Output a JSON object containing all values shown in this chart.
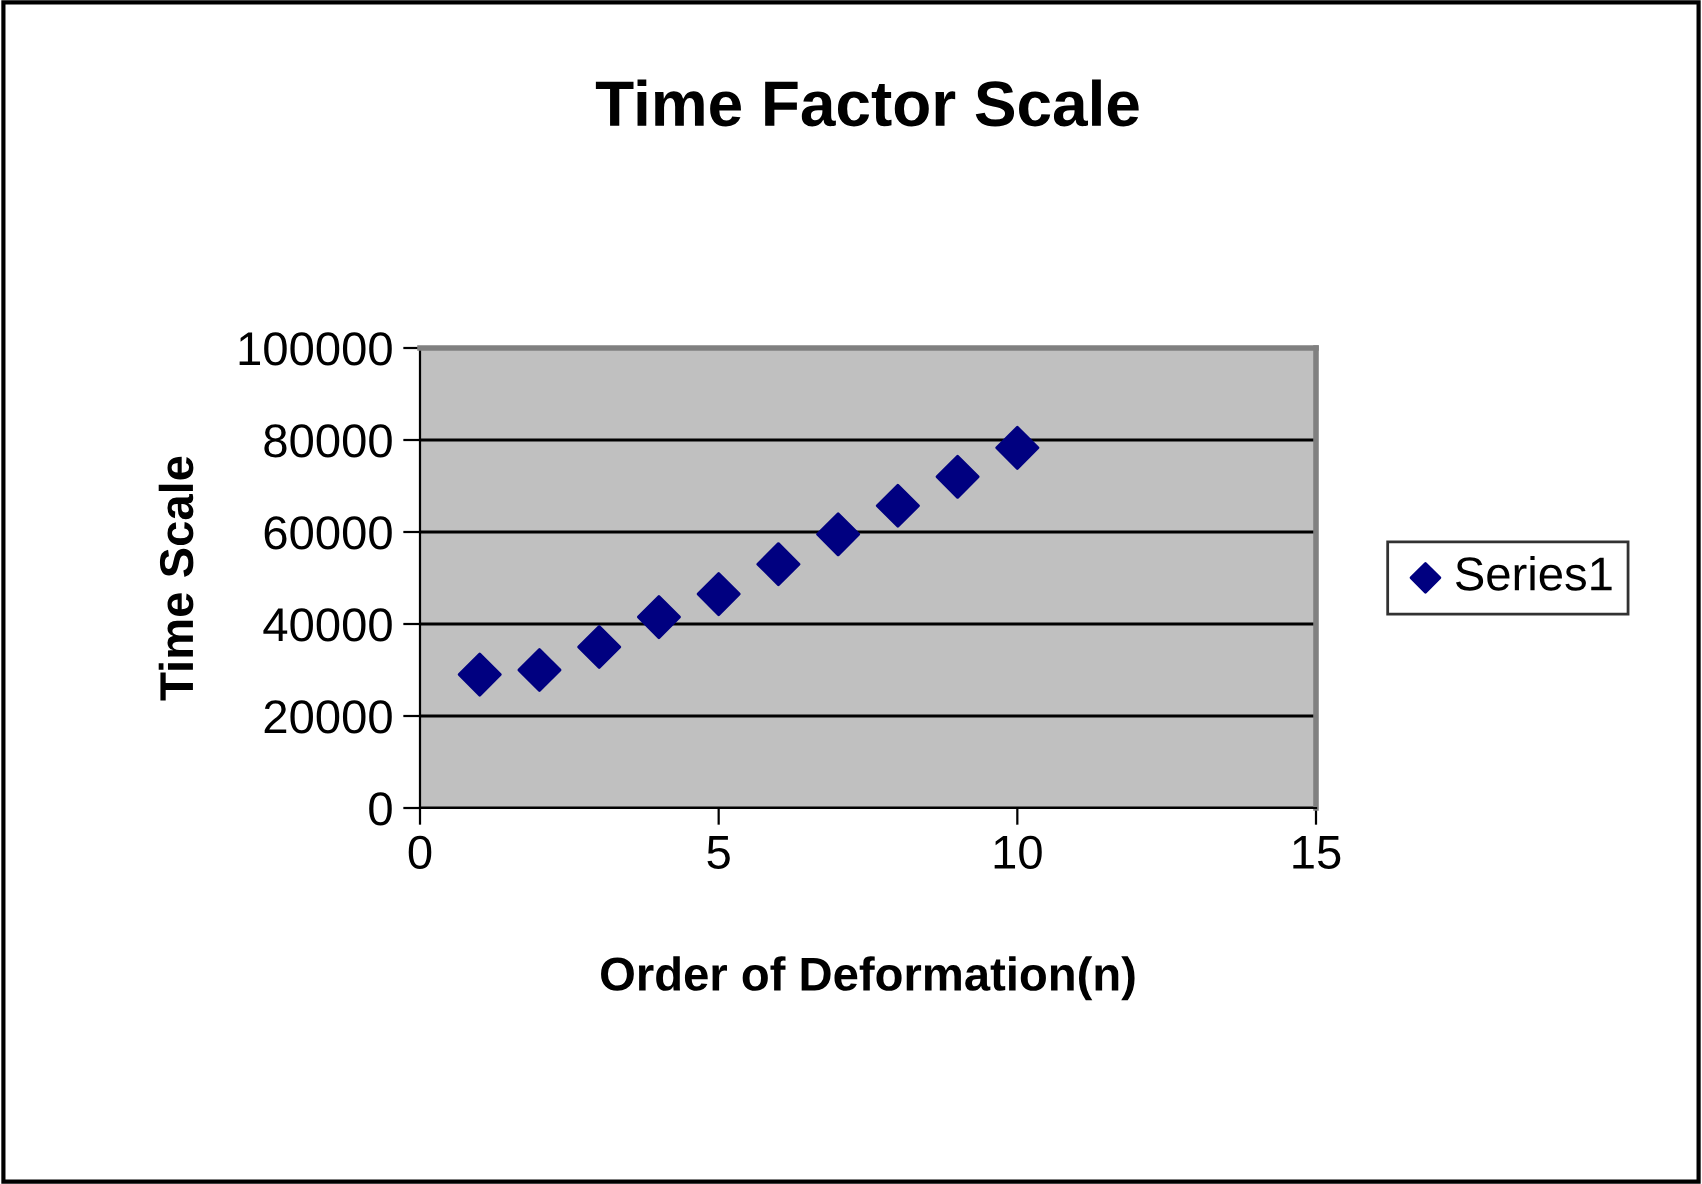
{
  "chart_data": {
    "type": "scatter",
    "title": "Time Factor Scale",
    "xlabel": "Order of Deformation(n)",
    "ylabel": "Time Scale",
    "x": [
      1,
      2,
      3,
      4,
      5,
      6,
      7,
      8,
      9,
      10
    ],
    "series": [
      {
        "name": "Series1",
        "color": "#000080",
        "values": [
          29000,
          30000,
          35000,
          41500,
          46500,
          53000,
          59500,
          65700,
          72000,
          78300
        ]
      }
    ],
    "xlim": [
      0,
      15
    ],
    "xticks": [
      0,
      5,
      10,
      15
    ],
    "ylim": [
      0,
      100000
    ],
    "yticks": [
      0,
      20000,
      40000,
      60000,
      80000,
      100000
    ],
    "grid": "y",
    "legend": "right",
    "marker": "diamond"
  }
}
